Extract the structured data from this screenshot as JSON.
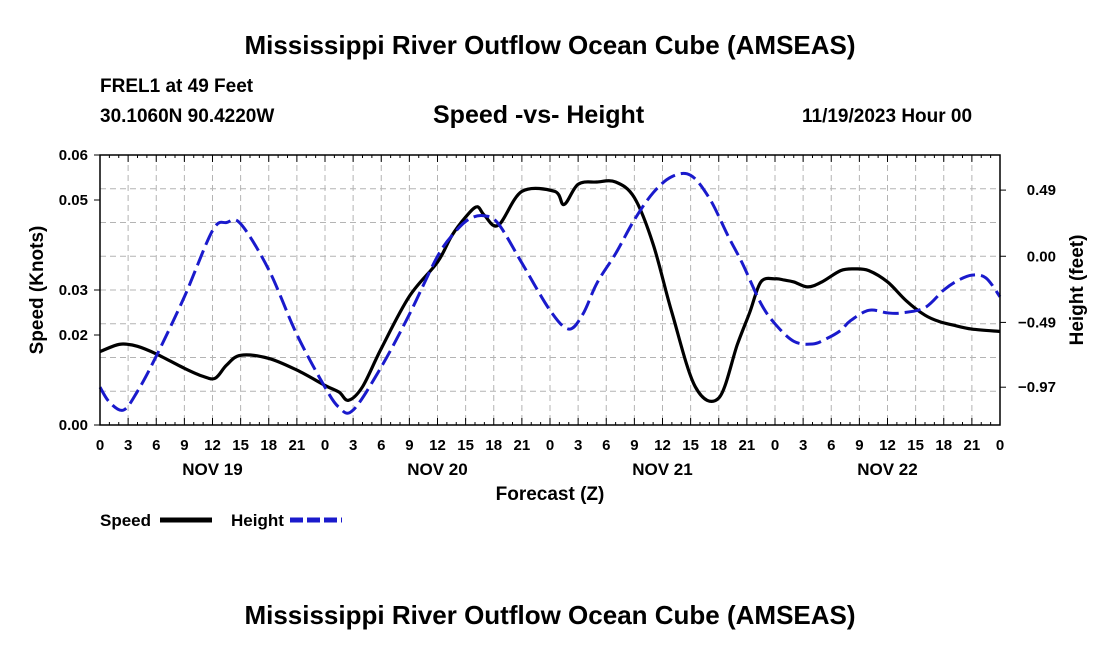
{
  "page_title": "Mississippi River Outflow Ocean Cube (AMSEAS)",
  "footer_title": "Mississippi River Outflow Ocean Cube (AMSEAS)",
  "station": {
    "line1": "FREL1 at 49 Feet",
    "coords": "30.1060N  90.4220W"
  },
  "run_time": "11/19/2023 Hour 00",
  "colors": {
    "speed": "#000000",
    "height": "#1a1acc",
    "grid": "#b4b4b4"
  },
  "chart_data": {
    "type": "line",
    "title": "Speed -vs- Height",
    "xlabel": "Forecast (Z)",
    "ylabel": "Speed (Knots)",
    "ylabel_right": "Height (feet)",
    "x_range_hours": [
      0,
      96
    ],
    "ylim": [
      0,
      0.06
    ],
    "ylim_right": [
      -1.25,
      0.75
    ],
    "y_ticks": [
      {
        "value": 0.0,
        "label": "0.00"
      },
      {
        "value": 0.02,
        "label": "0.02"
      },
      {
        "value": 0.03,
        "label": "0.03"
      },
      {
        "value": 0.05,
        "label": "0.05"
      },
      {
        "value": 0.06,
        "label": "0.06"
      }
    ],
    "y_right_ticks": [
      {
        "value": 0.49,
        "label": "0.49"
      },
      {
        "value": 0.0,
        "label": "0.00"
      },
      {
        "value": -0.49,
        "label": "−0.49"
      },
      {
        "value": -0.97,
        "label": "−0.97"
      }
    ],
    "x_tick_labels": [
      "0",
      "3",
      "6",
      "9",
      "12",
      "15",
      "18",
      "21",
      "0",
      "3",
      "6",
      "9",
      "12",
      "15",
      "18",
      "21",
      "0",
      "3",
      "6",
      "9",
      "12",
      "15",
      "18",
      "21",
      "0",
      "3",
      "6",
      "9",
      "12",
      "15",
      "18",
      "21",
      "0"
    ],
    "day_labels": [
      {
        "hour": 12,
        "label": "NOV 19"
      },
      {
        "hour": 36,
        "label": "NOV 20"
      },
      {
        "hour": 60,
        "label": "NOV 21"
      },
      {
        "hour": 84,
        "label": "NOV 22"
      }
    ],
    "series": [
      {
        "name": "Speed",
        "axis": "left",
        "style": "solid",
        "x": [
          0,
          1.5,
          2.5,
          4,
          6,
          9,
          11,
          12.3,
          13.5,
          15,
          18,
          21,
          24,
          25.5,
          26.5,
          28,
          30,
          33,
          36,
          37.5,
          39,
          40.2,
          41,
          42.5,
          45,
          48.5,
          49.5,
          51,
          53,
          55,
          57,
          59,
          61,
          63.5,
          66,
          68,
          69.3,
          70.5,
          72,
          73,
          74,
          75.5,
          77,
          79,
          80.5,
          82,
          84,
          86,
          88,
          89.5,
          91,
          93,
          96
        ],
        "values": [
          0.0163,
          0.0176,
          0.018,
          0.0175,
          0.0158,
          0.0126,
          0.0108,
          0.0104,
          0.0133,
          0.0155,
          0.0148,
          0.0122,
          0.0088,
          0.0073,
          0.0055,
          0.0085,
          0.017,
          0.0286,
          0.0362,
          0.042,
          0.0462,
          0.0485,
          0.0466,
          0.0444,
          0.0519,
          0.0519,
          0.049,
          0.0535,
          0.054,
          0.054,
          0.0505,
          0.0402,
          0.025,
          0.0085,
          0.006,
          0.018,
          0.025,
          0.0318,
          0.0325,
          0.0322,
          0.0318,
          0.0307,
          0.0318,
          0.0343,
          0.0347,
          0.0343,
          0.0318,
          0.0276,
          0.0244,
          0.023,
          0.0222,
          0.0213,
          0.0208
        ]
      },
      {
        "name": "Height",
        "axis": "right",
        "style": "dashed",
        "x": [
          0,
          1,
          2.5,
          4,
          6,
          9,
          12,
          13.5,
          15,
          18,
          21,
          24,
          25.5,
          27,
          30,
          33,
          36,
          38,
          39.5,
          41,
          42.5,
          45,
          48,
          50,
          51.5,
          53,
          55,
          57,
          59,
          61,
          63,
          65,
          67,
          68.5,
          70.5,
          72,
          74,
          76,
          77.5,
          79,
          80,
          82,
          84,
          85.5,
          88,
          90,
          91.5,
          93,
          94.5,
          96
        ],
        "values": [
          -0.97,
          -1.08,
          -1.14,
          -1.0,
          -0.74,
          -0.3,
          0.19,
          0.25,
          0.24,
          -0.1,
          -0.58,
          -0.97,
          -1.12,
          -1.14,
          -0.82,
          -0.43,
          0.0,
          0.19,
          0.28,
          0.3,
          0.24,
          -0.05,
          -0.4,
          -0.54,
          -0.43,
          -0.2,
          0.02,
          0.27,
          0.47,
          0.59,
          0.6,
          0.43,
          0.15,
          -0.05,
          -0.35,
          -0.5,
          -0.63,
          -0.65,
          -0.61,
          -0.55,
          -0.48,
          -0.4,
          -0.42,
          -0.42,
          -0.38,
          -0.25,
          -0.18,
          -0.14,
          -0.16,
          -0.3
        ]
      }
    ],
    "legend": [
      {
        "name": "Speed",
        "style": "solid"
      },
      {
        "name": "Height",
        "style": "dashed"
      }
    ]
  }
}
